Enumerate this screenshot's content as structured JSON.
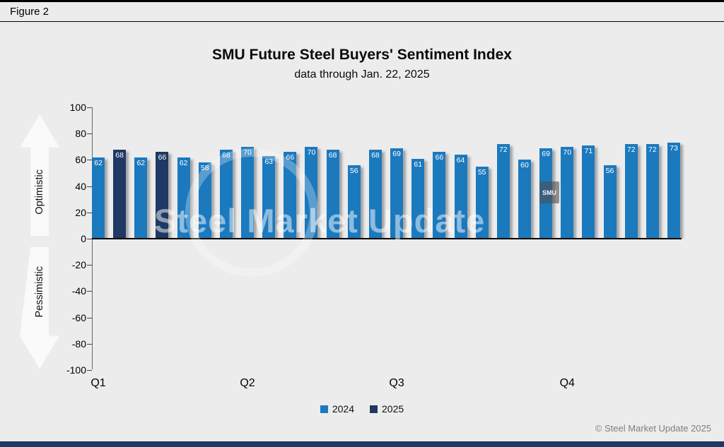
{
  "figure_label": "Figure 2",
  "copyright": "© Steel Market Update 2025",
  "watermark": {
    "text": "Steel Market Update",
    "badge": "SMU"
  },
  "colors": {
    "bottom_bar": "#1F3864"
  },
  "chart_data": {
    "type": "bar",
    "title": "SMU Future Steel Buyers' Sentiment Index",
    "subtitle": "data through Jan. 22, 2025",
    "ylabel_positive": "Optimistic",
    "ylabel_negative": "Pessimistic",
    "ylim": [
      -100,
      100
    ],
    "yticks": [
      100,
      80,
      60,
      40,
      20,
      0,
      -20,
      -40,
      -60,
      -80,
      -100
    ],
    "grid": false,
    "legend_position": "bottom",
    "series_colors": {
      "2024": "#1B79BE",
      "2025": "#1F3864"
    },
    "legend": [
      {
        "label": "2024",
        "series": "2024"
      },
      {
        "label": "2025",
        "series": "2025"
      }
    ],
    "x_axis_labels": [
      {
        "label": "Q1",
        "bar_index": 0
      },
      {
        "label": "Q2",
        "bar_index": 7
      },
      {
        "label": "Q3",
        "bar_index": 14
      },
      {
        "label": "Q4",
        "bar_index": 22
      }
    ],
    "bars": [
      {
        "value": 62,
        "series": "2024"
      },
      {
        "value": 68,
        "series": "2025"
      },
      {
        "value": 62,
        "series": "2024"
      },
      {
        "value": 66,
        "series": "2025"
      },
      {
        "value": 62,
        "series": "2024"
      },
      {
        "value": 58,
        "series": "2024"
      },
      {
        "value": 68,
        "series": "2024"
      },
      {
        "value": 70,
        "series": "2024"
      },
      {
        "value": 63,
        "series": "2024"
      },
      {
        "value": 66,
        "series": "2024"
      },
      {
        "value": 70,
        "series": "2024"
      },
      {
        "value": 68,
        "series": "2024"
      },
      {
        "value": 56,
        "series": "2024"
      },
      {
        "value": 68,
        "series": "2024"
      },
      {
        "value": 69,
        "series": "2024"
      },
      {
        "value": 61,
        "series": "2024"
      },
      {
        "value": 66,
        "series": "2024"
      },
      {
        "value": 64,
        "series": "2024"
      },
      {
        "value": 55,
        "series": "2024"
      },
      {
        "value": 72,
        "series": "2024"
      },
      {
        "value": 60,
        "series": "2024"
      },
      {
        "value": 69,
        "series": "2024"
      },
      {
        "value": 70,
        "series": "2024"
      },
      {
        "value": 71,
        "series": "2024"
      },
      {
        "value": 56,
        "series": "2024"
      },
      {
        "value": 72,
        "series": "2024"
      },
      {
        "value": 72,
        "series": "2024"
      },
      {
        "value": 73,
        "series": "2024"
      }
    ]
  }
}
